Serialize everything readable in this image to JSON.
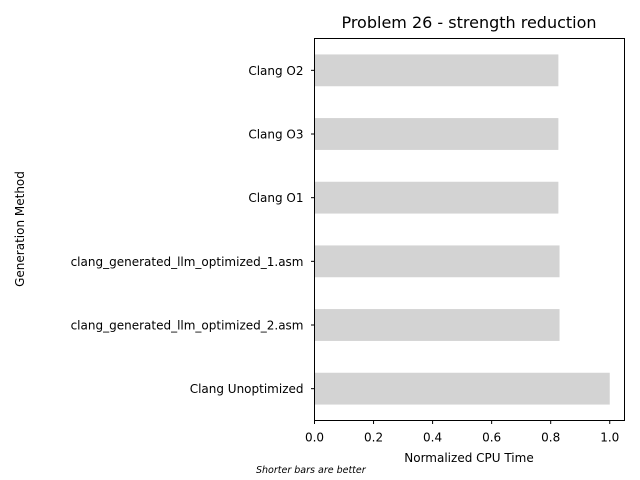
{
  "chart_data": {
    "type": "bar",
    "orientation": "horizontal",
    "title": "Problem 26 - strength reduction",
    "xlabel": "Normalized CPU Time",
    "ylabel": "Generation Method",
    "xlim": [
      0,
      1.05
    ],
    "xticks": [
      "0.0",
      "0.2",
      "0.4",
      "0.6",
      "0.8",
      "1.0"
    ],
    "xtick_values": [
      0,
      0.2,
      0.4,
      0.6,
      0.8,
      1.0
    ],
    "categories": [
      "Clang O2",
      "Clang O3",
      "Clang O1",
      "clang_generated_llm_optimized_1.asm",
      "clang_generated_llm_optimized_2.asm",
      "Clang Unoptimized"
    ],
    "values": [
      0.826,
      0.826,
      0.826,
      0.83,
      0.83,
      1.0
    ],
    "bar_color": "#d3d3d3",
    "grid": false,
    "legend": "none"
  },
  "footnote": "Shorter bars are better"
}
